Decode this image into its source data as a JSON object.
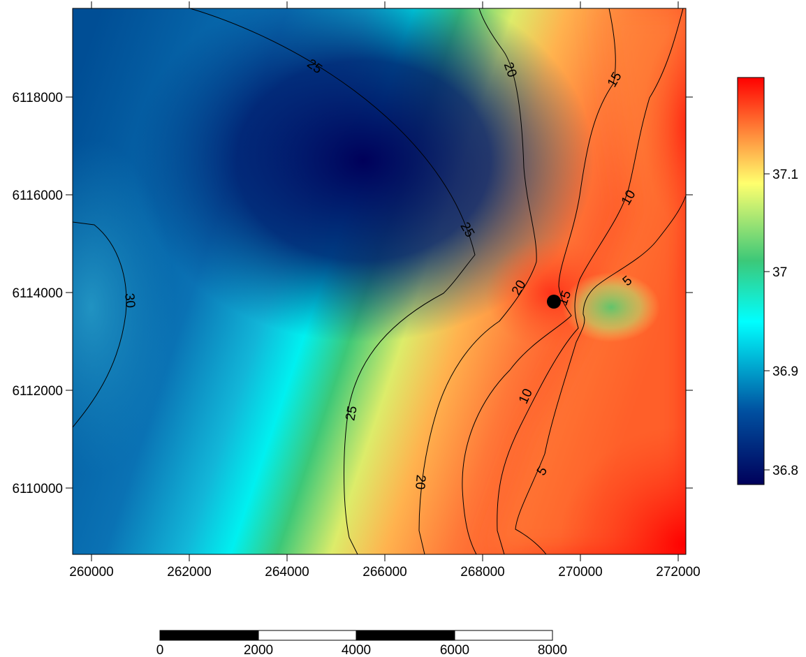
{
  "x_axis": {
    "tick_labels": [
      "260000",
      "262000",
      "264000",
      "266000",
      "268000",
      "270000",
      "272000"
    ]
  },
  "y_axis": {
    "tick_labels": [
      "6118000",
      "6116000",
      "6114000",
      "6112000",
      "6110000"
    ]
  },
  "colorbar": {
    "tick_labels": [
      "37.1",
      "37",
      "36.9",
      "36.8"
    ],
    "colors": [
      "#00005a",
      "#0050a0",
      "#00ffff",
      "#3cc878",
      "#ffff6e",
      "#ff8c3c",
      "#ff0000"
    ]
  },
  "contour_labels": [
    "25",
    "20",
    "15",
    "10",
    "30",
    "25",
    "20",
    "15",
    "5",
    "25",
    "10",
    "20",
    "5"
  ],
  "marker": {
    "icon": "black-dot"
  },
  "scale_bar": {
    "tick_labels": [
      "0",
      "2000",
      "4000",
      "6000",
      "8000"
    ]
  }
}
